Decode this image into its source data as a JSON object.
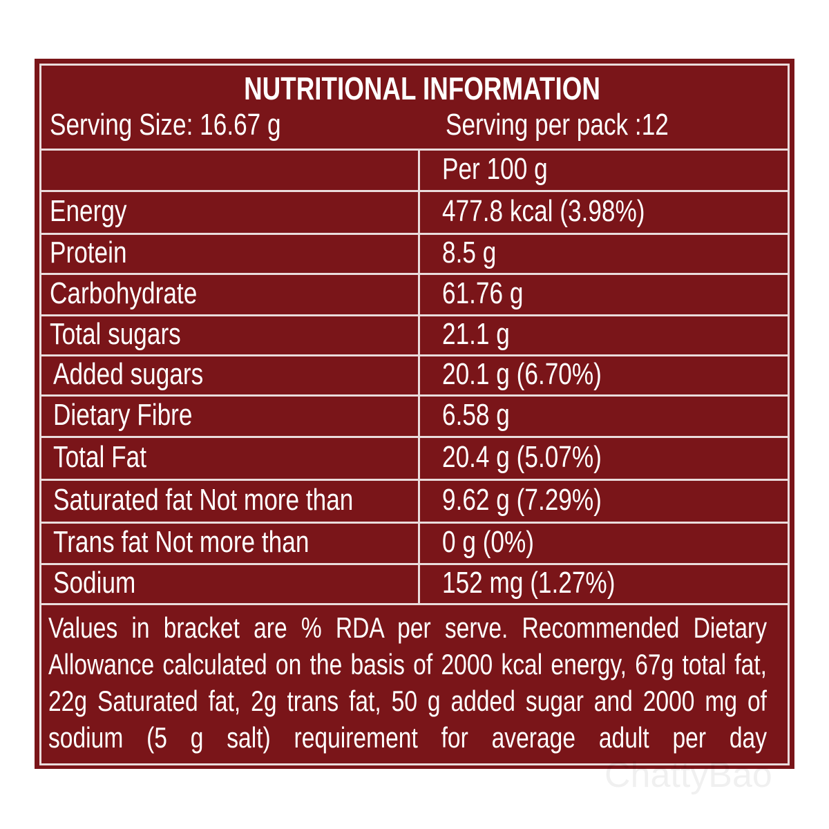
{
  "title": "NUTRITIONAL INFORMATION",
  "serving_size": "Serving Size: 16.67 g",
  "servings_per_pack": "Serving  per pack :12",
  "table": {
    "column_header": "Per 100 g",
    "rows": [
      [
        "Energy",
        "477.8 kcal (3.98%)"
      ],
      [
        "Protein",
        "8.5 g"
      ],
      [
        "Carbohydrate",
        "61.76 g"
      ],
      [
        "Total sugars",
        "21.1 g"
      ],
      [
        "Added sugars",
        "20.1 g (6.70%)"
      ],
      [
        "Dietary Fibre",
        "6.58 g"
      ],
      [
        "Total Fat",
        "20.4 g (5.07%)"
      ],
      [
        "Saturated fat Not more than",
        "9.62 g (7.29%)"
      ],
      [
        "Trans fat Not more than",
        "0 g (0%)"
      ],
      [
        "Sodium",
        "152 mg (1.27%)"
      ]
    ]
  },
  "footnote_lines": [
    "Values in bracket are % RDA per serve. Recommended Dietary",
    "Allowance calculated on the basis of 2000 kcal energy, 67g total fat,",
    "22g Saturated fat, 2g trans fat, 50 g added sugar and 2000 mg of",
    "sodium (5 g salt) requirement for average adult per day"
  ],
  "watermark": "ChattyBao"
}
